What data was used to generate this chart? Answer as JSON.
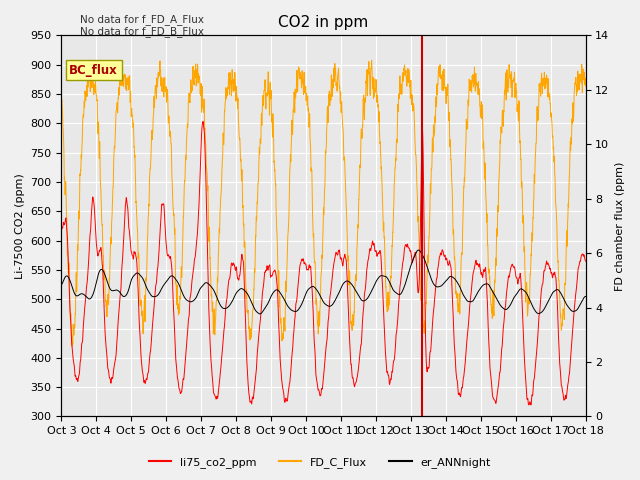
{
  "title": "CO2 in ppm",
  "ylabel_left": "Li-7500 CO2 (ppm)",
  "ylabel_right": "FD chamber flux (ppm)",
  "ylim_left": [
    300,
    950
  ],
  "ylim_right": [
    0,
    14
  ],
  "yticks_left": [
    300,
    350,
    400,
    450,
    500,
    550,
    600,
    650,
    700,
    750,
    800,
    850,
    900,
    950
  ],
  "yticks_right": [
    0,
    2,
    4,
    6,
    8,
    10,
    12,
    14
  ],
  "xtick_labels": [
    "Oct 3",
    "Oct 4",
    "Oct 5",
    "Oct 6",
    "Oct 7",
    "Oct 8",
    "Oct 9",
    "Oct 10",
    "Oct 11",
    "Oct 12",
    "Oct 13",
    "Oct 14",
    "Oct 15",
    "Oct 16",
    "Oct 17",
    "Oct 18"
  ],
  "color_li75": "#ff0000",
  "color_fd_c": "#ffa500",
  "color_ann": "#000000",
  "color_vline": "#cc0000",
  "color_bc_box": "#ffff99",
  "color_bc_text": "#aa0000",
  "color_bc_border": "#999900",
  "color_background": "#e8e8e8",
  "text_nodata1": "No data for f_FD_A_Flux",
  "text_nodata2": "No data for f_FD_B_Flux",
  "legend_labels": [
    "li75_co2_ppm",
    "FD_C_Flux",
    "er_ANNnight"
  ],
  "vline_x": 10.33,
  "grid_color": "#ffffff",
  "title_fontsize": 11,
  "label_fontsize": 8,
  "tick_fontsize": 8
}
